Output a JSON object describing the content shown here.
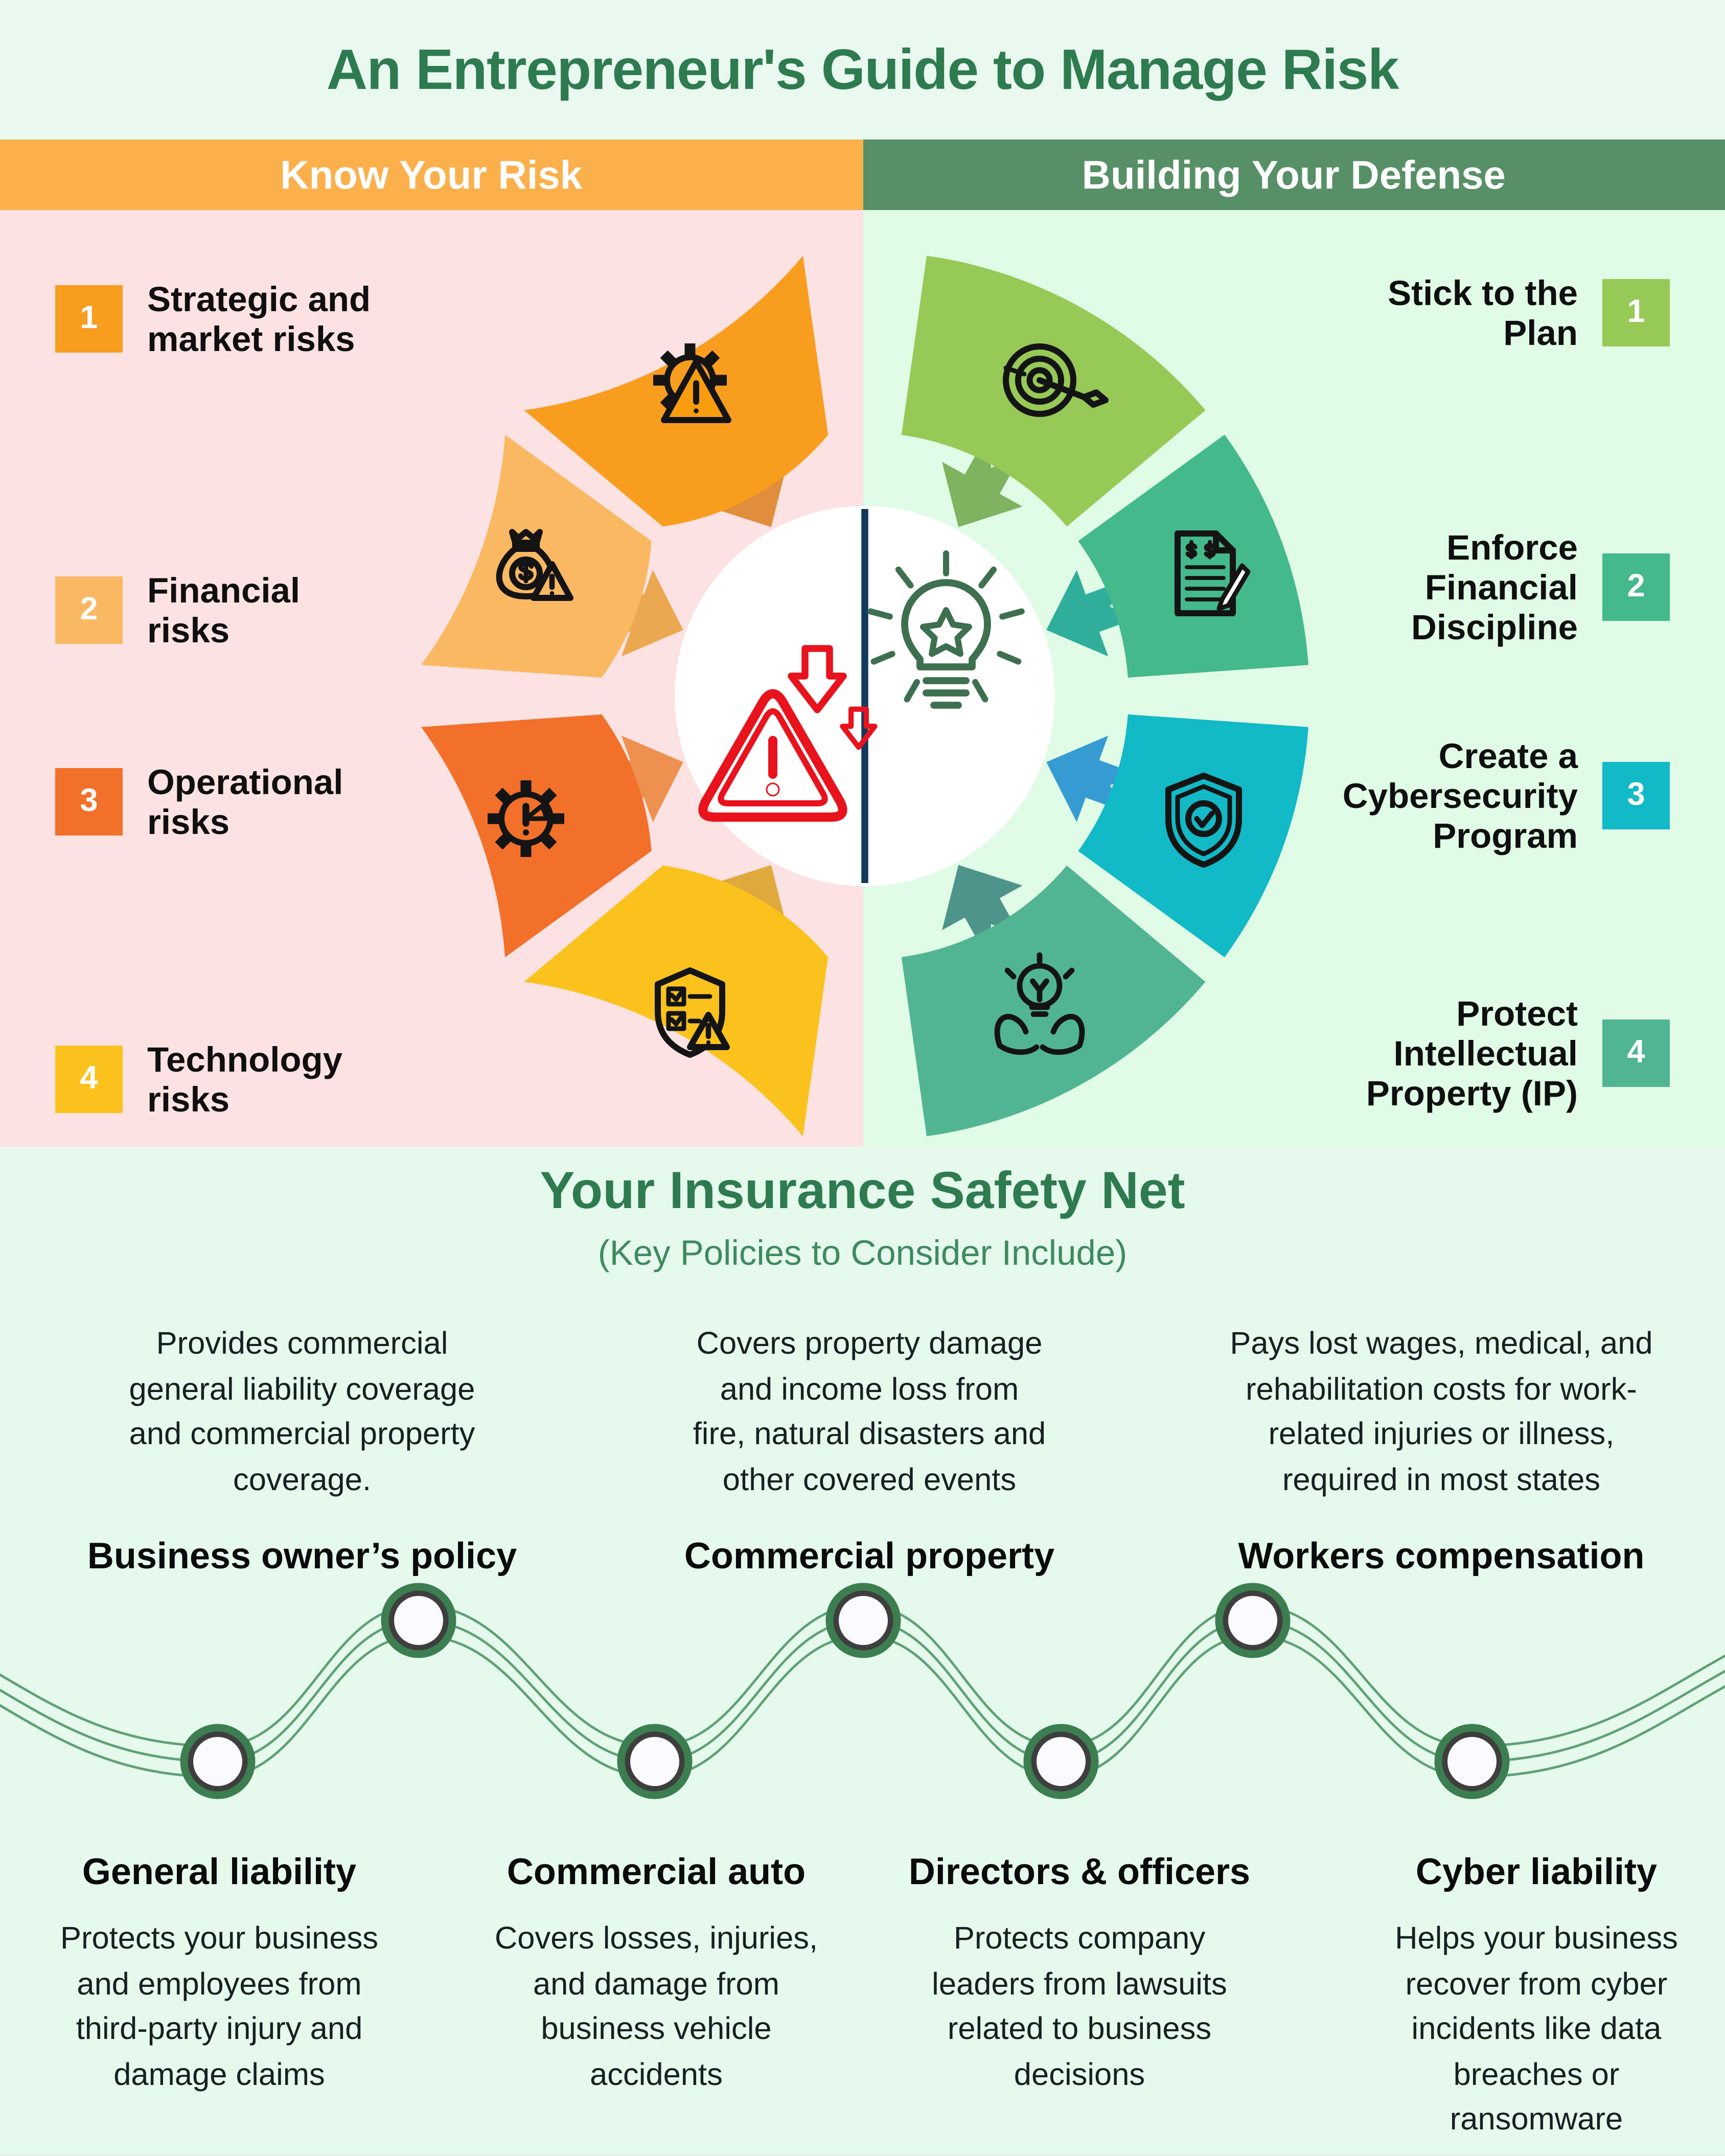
{
  "header": {
    "title": "An Entrepreneur's Guide to Manage Risk"
  },
  "banners": {
    "left": "Know Your Risk",
    "right": "Building Your Defense"
  },
  "risks": {
    "items": [
      {
        "num": "1",
        "label": "Strategic and\nmarket risks",
        "icon": "gear-warning"
      },
      {
        "num": "2",
        "label": "Financial\nrisks",
        "icon": "money-bag-warning"
      },
      {
        "num": "3",
        "label": "Operational\nrisks",
        "icon": "gear-alert"
      },
      {
        "num": "4",
        "label": "Technology\nrisks",
        "icon": "shield-checklist-warning"
      }
    ]
  },
  "defenses": {
    "items": [
      {
        "num": "1",
        "label": "Stick to the\nPlan",
        "icon": "target-arrow"
      },
      {
        "num": "2",
        "label": "Enforce\nFinancial\nDiscipline",
        "icon": "financial-document"
      },
      {
        "num": "3",
        "label": "Create a\nCybersecurity\nProgram",
        "icon": "shield-check"
      },
      {
        "num": "4",
        "label": "Protect\nIntellectual\nProperty (IP)",
        "icon": "hands-lightbulb"
      }
    ]
  },
  "center": {
    "left_icon": "risk-warning-decline",
    "right_icon": "idea-lightbulb-star"
  },
  "insurance": {
    "title": "Your Insurance Safety Net",
    "subtitle": "(Key Policies to Consider Include)",
    "top_policies": [
      {
        "name": "Business owner’s policy",
        "description": "Provides commercial\ngeneral liability coverage\nand commercial property\ncoverage."
      },
      {
        "name": "Commercial property",
        "description": "Covers property damage\nand income loss from\nfire, natural disasters and\nother covered events"
      },
      {
        "name": "Workers compensation",
        "description": "Pays lost wages, medical, and\nrehabilitation costs for work-\nrelated injuries or illness,\nrequired in most states"
      }
    ],
    "bottom_policies": [
      {
        "name": "General liability",
        "description": "Protects your business\nand employees from\nthird-party injury and\ndamage claims"
      },
      {
        "name": "Commercial auto",
        "description": "Covers losses, injuries,\nand damage from\nbusiness vehicle\naccidents"
      },
      {
        "name": "Directors & officers",
        "description": "Protects company\nleaders from lawsuits\nrelated to business\ndecisions"
      },
      {
        "name": "Cyber liability",
        "description": "Helps your business\nrecover from cyber\nincidents like data\nbreaches or\nransomware"
      }
    ]
  },
  "colors": {
    "title_green": "#2E7B4F",
    "banner_orange": "#FBB04C",
    "banner_green": "#579066",
    "panel_pink": "#FCE2E2",
    "panel_green": "#E0FBE6",
    "page_mint": "#E9F9F0",
    "insurance_mint": "#E5F9ED",
    "divider_navy": "#123A5E",
    "alert_red": "#E8131D",
    "bulb_green": "#3E7050",
    "risk_steps": [
      "#F99D1F",
      "#FBB863",
      "#F2702A",
      "#FBC21D"
    ],
    "risk_arrows": [
      "#E08E3C",
      "#EBA851",
      "#EE9150",
      "#E0A93E"
    ],
    "defense_steps": [
      "#97C957",
      "#43B98C",
      "#12B9C6",
      "#51B593"
    ],
    "defense_arrows": [
      "#7FB35F",
      "#2FAE9B",
      "#369BD3",
      "#4E948B"
    ],
    "wave_line": "#5FA173",
    "node_ring_green": "#3C7E50",
    "node_ring_dark": "#3E3E3E",
    "node_fill": "#FBFBFF"
  }
}
